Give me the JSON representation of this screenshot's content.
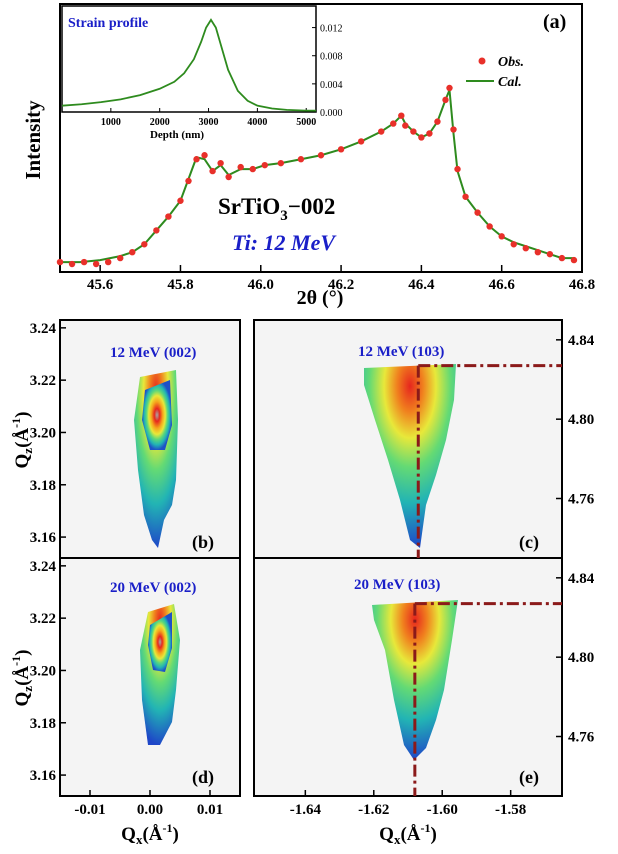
{
  "chart_data": [
    {
      "panel": "(a)",
      "type": "scatter+line",
      "ylabel": "Intensity",
      "xlabel": "2θ (°)",
      "xlim": [
        45.5,
        46.8
      ],
      "xticks": [
        "45.6",
        "45.8",
        "46.0",
        "46.2",
        "46.4",
        "46.6",
        "46.8"
      ],
      "legend": {
        "position": "top-right",
        "entries": [
          "Obs.",
          "Cal."
        ]
      },
      "annotations": [
        "SrTiO",
        "3",
        "−002",
        "Ti: 12 MeV"
      ],
      "series": [
        {
          "name": "Obs.",
          "color": "#e8302a",
          "marker": "circle",
          "x": [
            45.5,
            45.53,
            45.56,
            45.59,
            45.62,
            45.65,
            45.68,
            45.71,
            45.74,
            45.77,
            45.8,
            45.82,
            45.84,
            45.86,
            45.88,
            45.9,
            45.92,
            45.95,
            45.98,
            46.01,
            46.05,
            46.1,
            46.15,
            46.2,
            46.25,
            46.3,
            46.33,
            46.35,
            46.36,
            46.38,
            46.4,
            46.42,
            46.44,
            46.46,
            46.47,
            46.48,
            46.49,
            46.51,
            46.54,
            46.57,
            46.6,
            46.63,
            46.66,
            46.69,
            46.72,
            46.75,
            46.78
          ],
          "y": [
            0.03,
            0.02,
            0.03,
            0.02,
            0.03,
            0.05,
            0.08,
            0.12,
            0.19,
            0.26,
            0.34,
            0.44,
            0.55,
            0.57,
            0.49,
            0.53,
            0.46,
            0.51,
            0.5,
            0.52,
            0.53,
            0.55,
            0.57,
            0.6,
            0.64,
            0.69,
            0.73,
            0.77,
            0.72,
            0.69,
            0.66,
            0.68,
            0.74,
            0.85,
            0.91,
            0.7,
            0.5,
            0.36,
            0.28,
            0.21,
            0.16,
            0.12,
            0.1,
            0.08,
            0.07,
            0.05,
            0.04
          ]
        },
        {
          "name": "Cal.",
          "color": "#2e8b1e",
          "line": true,
          "x": [
            45.5,
            45.55,
            45.6,
            45.65,
            45.68,
            45.71,
            45.74,
            45.77,
            45.8,
            45.82,
            45.84,
            45.86,
            45.88,
            45.9,
            45.92,
            45.95,
            45.98,
            46.01,
            46.05,
            46.1,
            46.15,
            46.2,
            46.25,
            46.3,
            46.33,
            46.35,
            46.36,
            46.38,
            46.4,
            46.42,
            46.44,
            46.46,
            46.47,
            46.48,
            46.49,
            46.51,
            46.54,
            46.57,
            46.6,
            46.63,
            46.66,
            46.69,
            46.72,
            46.75,
            46.78
          ],
          "y": [
            0.03,
            0.03,
            0.04,
            0.06,
            0.08,
            0.12,
            0.19,
            0.26,
            0.34,
            0.45,
            0.56,
            0.55,
            0.49,
            0.52,
            0.47,
            0.5,
            0.5,
            0.52,
            0.53,
            0.55,
            0.57,
            0.6,
            0.64,
            0.69,
            0.73,
            0.77,
            0.73,
            0.69,
            0.66,
            0.68,
            0.74,
            0.85,
            0.9,
            0.68,
            0.49,
            0.36,
            0.28,
            0.21,
            0.16,
            0.13,
            0.11,
            0.09,
            0.07,
            0.05,
            0.05
          ]
        }
      ]
    },
    {
      "panel": "inset",
      "type": "line",
      "title": "Strain profile",
      "xlabel": "Depth (nm)",
      "xlim": [
        0,
        5200
      ],
      "ylim": [
        0,
        0.0145
      ],
      "xticks": [
        "1000",
        "2000",
        "3000",
        "4000",
        "5000"
      ],
      "yticks": [
        "0.000",
        "0.004",
        "0.008",
        "0.012"
      ],
      "series": [
        {
          "color": "#2e8b1e",
          "x": [
            0,
            400,
            800,
            1200,
            1600,
            2000,
            2300,
            2500,
            2700,
            2850,
            2950,
            3050,
            3150,
            3250,
            3400,
            3600,
            3800,
            4000,
            4300,
            4600,
            5000,
            5200
          ],
          "y": [
            0.0009,
            0.0011,
            0.0014,
            0.0018,
            0.0024,
            0.0033,
            0.0043,
            0.0055,
            0.0075,
            0.01,
            0.012,
            0.0131,
            0.012,
            0.0096,
            0.006,
            0.003,
            0.0016,
            0.0009,
            0.0005,
            0.0003,
            0.0002,
            0.0002
          ]
        }
      ]
    },
    {
      "panel": "(b)",
      "type": "heatmap",
      "label": "12 MeV (002)",
      "ylabel_left": "Q",
      "ylabel_sub": "z",
      "ylabel_unit": "(Å",
      "ylabel_exp": "-1",
      "ylabel_close": ")",
      "xlim": [
        -0.015,
        0.015
      ],
      "ylim": [
        3.152,
        3.243
      ],
      "yticks": [
        "3.16",
        "3.18",
        "3.20",
        "3.22",
        "3.24"
      ]
    },
    {
      "panel": "(c)",
      "type": "heatmap",
      "label": "12 MeV (103)",
      "xlim": [
        -1.655,
        -1.565
      ],
      "ylim": [
        4.73,
        4.85
      ],
      "yticks": [
        "4.76",
        "4.80",
        "4.84"
      ],
      "guide_lines": {
        "qx": -1.607,
        "qz": 4.827,
        "color": "#8b1a1a"
      }
    },
    {
      "panel": "(d)",
      "type": "heatmap",
      "label": "20 MeV (002)",
      "xlabel": "Q",
      "xlabel_sub": "x",
      "xlabel_unit": "(Å",
      "xlabel_exp": "-1",
      "xlabel_close": ")",
      "ylabel_left": "Q",
      "ylabel_sub": "z",
      "ylabel_unit": "(Å",
      "ylabel_exp": "-1",
      "ylabel_close": ")",
      "xlim": [
        -0.015,
        0.015
      ],
      "ylim": [
        3.152,
        3.243
      ],
      "xticks": [
        "-0.01",
        "0.00",
        "0.01"
      ],
      "yticks": [
        "3.16",
        "3.18",
        "3.20",
        "3.22",
        "3.24"
      ]
    },
    {
      "panel": "(e)",
      "type": "heatmap",
      "label": "20 MeV (103)",
      "xlabel": "Q",
      "xlabel_sub": "x",
      "xlabel_unit": "(Å",
      "xlabel_exp": "-1",
      "xlabel_close": ")",
      "xlim": [
        -1.655,
        -1.565
      ],
      "ylim": [
        4.73,
        4.85
      ],
      "xticks": [
        "-1.64",
        "-1.62",
        "-1.60",
        "-1.58"
      ],
      "yticks": [
        "4.76",
        "4.80",
        "4.84"
      ],
      "guide_lines": {
        "qx": -1.608,
        "qz": 4.827,
        "color": "#8b1a1a"
      }
    }
  ],
  "colors": {
    "label_blue": "#1a1fc8",
    "obs_red": "#e8302a",
    "cal_green": "#2e8b1e",
    "guide": "#8b1a1a"
  }
}
